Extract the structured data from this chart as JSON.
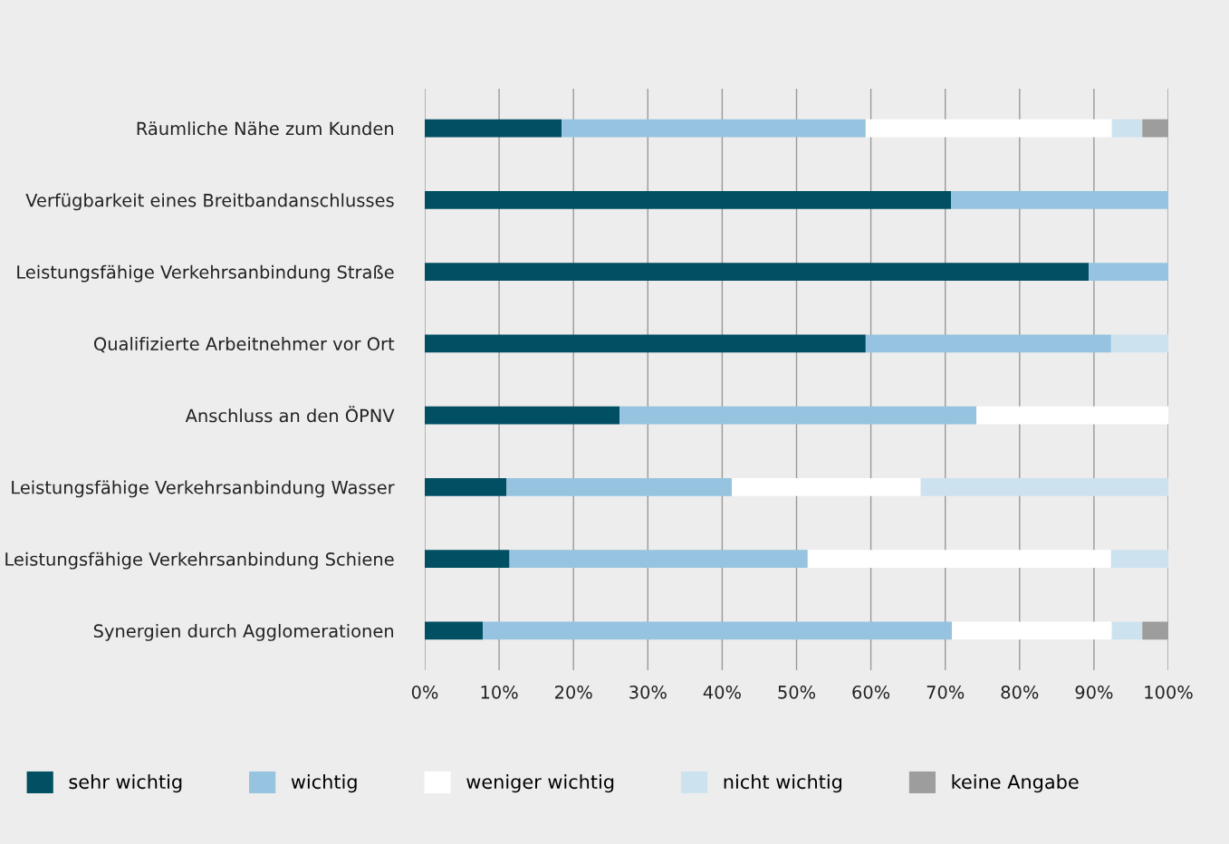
{
  "chart_data": {
    "type": "bar",
    "orientation": "horizontal",
    "stacked": true,
    "categories": [
      "Räumliche Nähe zum Kunden",
      "Verfügbarkeit eines Breitbandanschlusses",
      "Leistungsfähige Verkehrsanbindung Straße",
      "Qualifizierte Arbeitnehmer vor Ort",
      "Anschluss an den ÖPNV",
      "Leistungsfähige Verkehrsanbindung Wasser",
      "Leistungsfähige Verkehrsanbindung Schiene",
      "Synergien durch Agglomerationen"
    ],
    "series": [
      {
        "name": "sehr wichtig",
        "color": "#004f63",
        "values": [
          18.4,
          70.8,
          89.3,
          59.3,
          26.2,
          11.0,
          11.4,
          7.8
        ]
      },
      {
        "name": "wichtig",
        "color": "#95c3e0",
        "values": [
          40.9,
          29.2,
          10.7,
          33.0,
          48.0,
          30.3,
          40.1,
          63.1
        ]
      },
      {
        "name": "weniger wichtig",
        "color": "#ffffff",
        "values": [
          33.1,
          0,
          0,
          0,
          25.8,
          25.4,
          40.8,
          21.5
        ]
      },
      {
        "name": "nicht wichtig",
        "color": "#cde2ef",
        "values": [
          4.1,
          0,
          0,
          7.7,
          0,
          33.3,
          7.7,
          4.1
        ]
      },
      {
        "name": "keine Angabe",
        "color": "#9d9d9d",
        "values": [
          3.5,
          0,
          0,
          0,
          0,
          0,
          0,
          3.5
        ]
      }
    ],
    "xlim": [
      0,
      100
    ],
    "xticks": [
      {
        "value": 0,
        "label": "0%"
      },
      {
        "value": 10,
        "label": "10%"
      },
      {
        "value": 20,
        "label": "20%"
      },
      {
        "value": 30,
        "label": "30%"
      },
      {
        "value": 40,
        "label": "40%"
      },
      {
        "value": 50,
        "label": "50%"
      },
      {
        "value": 60,
        "label": "60%"
      },
      {
        "value": 70,
        "label": "70%"
      },
      {
        "value": 80,
        "label": "80%"
      },
      {
        "value": 90,
        "label": "90%"
      },
      {
        "value": 100,
        "label": "100%"
      }
    ],
    "grid": "x",
    "legend": "bottom"
  }
}
